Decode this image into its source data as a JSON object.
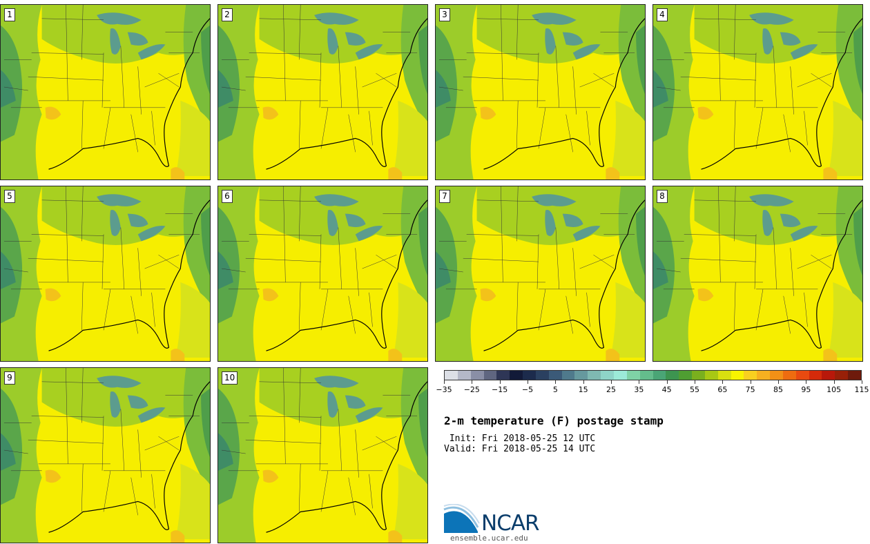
{
  "panels": [
    {
      "number": "1"
    },
    {
      "number": "2"
    },
    {
      "number": "3"
    },
    {
      "number": "4"
    },
    {
      "number": "5"
    },
    {
      "number": "6"
    },
    {
      "number": "7"
    },
    {
      "number": "8"
    },
    {
      "number": "9"
    },
    {
      "number": "10"
    }
  ],
  "colorbar": {
    "colors": [
      "#dcdfe6",
      "#b4b8c8",
      "#8a8fa6",
      "#5f6680",
      "#2e3656",
      "#121a38",
      "#1c2b4c",
      "#2a4060",
      "#3b5a78",
      "#4f7a8c",
      "#66999e",
      "#7fb9b2",
      "#8ed4c8",
      "#9cead8",
      "#7fd2a6",
      "#64bc8c",
      "#4aa576",
      "#3d9450",
      "#4f9e32",
      "#7ab01e",
      "#a8c814",
      "#d8e010",
      "#f8f400",
      "#f8d020",
      "#f6b020",
      "#f29016",
      "#ee6c10",
      "#e84a10",
      "#d42a0a",
      "#b8180a",
      "#982008",
      "#6e1a0c"
    ],
    "tick_labels": [
      "−35",
      "−25",
      "−15",
      "−5",
      "5",
      "15",
      "25",
      "35",
      "45",
      "55",
      "65",
      "75",
      "85",
      "95",
      "105",
      "115"
    ]
  },
  "title": "2-m temperature (F) postage stamp",
  "init_line": " Init: Fri 2018-05-25 12 UTC",
  "valid_line": "Valid: Fri 2018-05-25 14 UTC",
  "logo": {
    "text": "NCAR",
    "url": "ensemble.ucar.edu"
  }
}
